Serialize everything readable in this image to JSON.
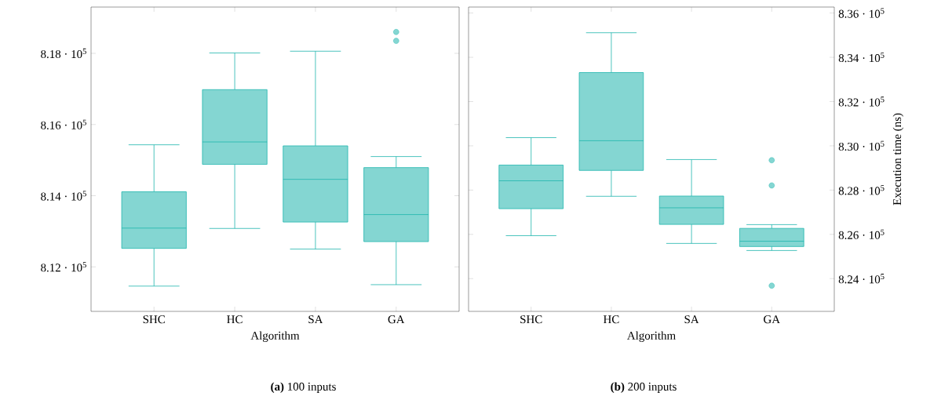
{
  "chart_data": [
    {
      "type": "box",
      "title": "**(a)** 100 inputs",
      "xlabel": "Algorithm",
      "categories": [
        "SHC",
        "HC",
        "SA",
        "GA"
      ],
      "color": "#1fb5ad",
      "boxes": [
        {
          "low": 811460,
          "q1": 812520,
          "median": 813090,
          "q3": 814110,
          "high": 815430
        },
        {
          "low": 813080,
          "q1": 814880,
          "median": 815510,
          "q3": 816980,
          "high": 818010
        },
        {
          "low": 812500,
          "q1": 813260,
          "median": 814460,
          "q3": 815400,
          "high": 818060
        },
        {
          "low": 811500,
          "q1": 812710,
          "median": 813470,
          "q3": 814790,
          "high": 815100,
          "outliers": [
            818600,
            818350
          ]
        }
      ],
      "ylim": [
        810750,
        819300
      ],
      "yticks": [
        {
          "value": 812000,
          "label": "8.12 · 10$^{5}$"
        },
        {
          "value": 814000,
          "label": "8.14 · 10$^{5}$"
        },
        {
          "value": 816000,
          "label": "8.16 · 10$^{5}$"
        },
        {
          "value": 818000,
          "label": "8.18 · 10$^{5}$"
        }
      ]
    },
    {
      "type": "box",
      "title": "**(b)** 200 inputs",
      "xlabel": "Algorithm",
      "ylabel": "Execution time (ns)",
      "categories": [
        "SHC",
        "HC",
        "SA",
        "GA"
      ],
      "color": "#1fb5ad",
      "boxes": [
        {
          "low": 825940,
          "q1": 827160,
          "median": 828420,
          "q3": 829130,
          "high": 830370
        },
        {
          "low": 827720,
          "q1": 828890,
          "median": 830230,
          "q3": 833310,
          "high": 835110
        },
        {
          "low": 825590,
          "q1": 826450,
          "median": 827200,
          "q3": 827730,
          "high": 829380
        },
        {
          "low": 825270,
          "q1": 825450,
          "median": 825690,
          "q3": 826270,
          "high": 826440,
          "outliers": [
            829350,
            828210,
            823680
          ]
        }
      ],
      "ylim": [
        822520,
        836270
      ],
      "yticks": [
        {
          "value": 824000,
          "label": "8.24 · 10$^{5}$"
        },
        {
          "value": 826000,
          "label": "8.26 · 10$^{5}$"
        },
        {
          "value": 828000,
          "label": "8.28 · 10$^{5}$"
        },
        {
          "value": 830000,
          "label": "8.30 · 10$^{5}$"
        },
        {
          "value": 832000,
          "label": "8.32 · 10$^{5}$"
        },
        {
          "value": 834000,
          "label": "8.34 · 10$^{5}$"
        },
        {
          "value": 836000,
          "label": "8.36 · 10$^{5}$"
        }
      ]
    }
  ]
}
